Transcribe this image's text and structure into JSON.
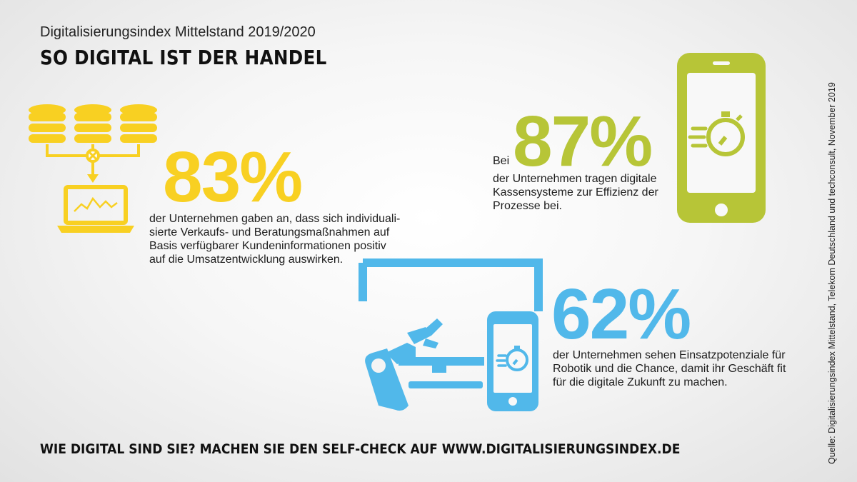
{
  "header": {
    "subtitle": "Digitalisierungsindex Mittelstand 2019/2020",
    "title": "SO DIGITAL IST DER HANDEL"
  },
  "colors": {
    "yellow": "#f8d022",
    "green": "#b7c537",
    "blue": "#51b8ea",
    "text": "#1a1a1a"
  },
  "stats": [
    {
      "value": "83%",
      "icon": "database-network-laptop-icon",
      "description": "der Unternehmen gaben an, dass sich individuali-\nsierte Verkaufs- und Beratungsmaßnahmen auf\nBasis verfügbarer Kundeninformationen positiv\nauf die Umsatzentwicklung auswirken."
    },
    {
      "prefix": "Bei",
      "value": "87%",
      "icon": "smartphone-stopwatch-icon",
      "description": "der Unternehmen tragen digitale\nKassensysteme zur Effizienz der\nProzesse bei."
    },
    {
      "value": "62%",
      "icon": "robot-arm-monitor-phone-icon",
      "description": "der Unternehmen sehen Einsatzpotenziale für\nRobotik und die Chance, damit ihr Geschäft fit\nfür die digitale Zukunft zu machen."
    }
  ],
  "footer": {
    "cta": "WIE DIGITAL SIND SIE? MACHEN SIE DEN SELF-CHECK AUF WWW.DIGITALISIERUNGSINDEX.DE",
    "source": "Quelle: Digitalisierungsindex Mittelstand, Telekom Deutschland und techconsult, November 2019"
  }
}
